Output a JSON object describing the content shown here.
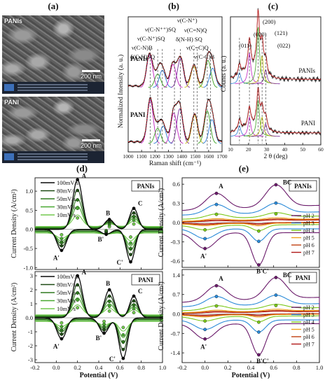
{
  "panel_labels": [
    "(a)",
    "(b)",
    "(c)",
    "(d)",
    "(e)"
  ],
  "sem": {
    "images": [
      {
        "label": "PANIs",
        "scale": "200 nm"
      },
      {
        "label": "PANI",
        "scale": "200 nm"
      }
    ]
  },
  "colors": {
    "data_black": "#1a1a1a",
    "fit_red": "#d42020",
    "band_blue": "#2a7ad4",
    "band_magenta": "#c020c0",
    "band_green": "#3aa020",
    "band_yellow": "#c8c010",
    "band_purple": "#7a2a9a",
    "pH_colors": [
      "#6a1a6a",
      "#2a8ad8",
      "#7ac818",
      "#f0a020",
      "#c04010",
      "#b01818"
    ],
    "cv_greens": [
      "#0a0a0a",
      "#1e4a14",
      "#2e7a1e",
      "#48a830",
      "#72c84e"
    ]
  },
  "chart_data": [
    {
      "id": "b",
      "type": "line",
      "title": "",
      "xlabel": "Raman shift (cm⁻¹)",
      "ylabel": "Normalized Intensity (a. u.)",
      "xlim": [
        1000,
        1700
      ],
      "xticks": [
        1000,
        1100,
        1200,
        1300,
        1400,
        1500,
        1600,
        1700
      ],
      "series": [
        {
          "name": "PANIs",
          "peaks": [
            [
              1160,
              0.85
            ],
            [
              1220,
              0.35
            ],
            [
              1255,
              0.45
            ],
            [
              1335,
              0.6
            ],
            [
              1390,
              0.75
            ],
            [
              1490,
              0.55
            ],
            [
              1595,
              0.7
            ],
            [
              1630,
              0.5
            ]
          ]
        },
        {
          "name": "PANI",
          "peaks": [
            [
              1165,
              1.0
            ],
            [
              1220,
              0.35
            ],
            [
              1260,
              0.4
            ],
            [
              1340,
              0.7
            ],
            [
              1385,
              0.8
            ],
            [
              1495,
              0.65
            ],
            [
              1590,
              0.75
            ],
            [
              1625,
              0.55
            ]
          ]
        }
      ],
      "band_labels": [
        {
          "text": "δ(C-H)SQ",
          "x": 1165
        },
        {
          "text": "ν(C-N)B",
          "x": 1220
        },
        {
          "text": "ν(C-N⁺)SQ",
          "x": 1255
        },
        {
          "text": "ν(C-N⁺⁺)SQ",
          "x": 1345
        },
        {
          "text": "ν(C-N⁺)",
          "x": 1390
        },
        {
          "text": "ν(C=N)Q",
          "x": 1490
        },
        {
          "text": "δ(N-H) SQ",
          "x": 1515
        },
        {
          "text": "ν(C=C)Q",
          "x": 1590
        },
        {
          "text": "ν(C-C)B",
          "x": 1615
        }
      ]
    },
    {
      "id": "c",
      "type": "line",
      "xlabel": "2 θ (deg)",
      "ylabel": "Counts (a. u.)",
      "xlim": [
        10,
        60
      ],
      "xticks": [
        10,
        20,
        30,
        40,
        50,
        60
      ],
      "series": [
        {
          "name": "PANIs",
          "peaks": [
            [
              15,
              0.2
            ],
            [
              20.5,
              0.55
            ],
            [
              25.3,
              1.0
            ],
            [
              27.5,
              0.5
            ],
            [
              29.5,
              0.25
            ]
          ]
        },
        {
          "name": "PANI",
          "peaks": [
            [
              15,
              0.25
            ],
            [
              20.5,
              0.45
            ],
            [
              25.3,
              0.85
            ],
            [
              27.5,
              0.45
            ],
            [
              29.5,
              0.3
            ]
          ]
        }
      ],
      "peak_labels": [
        {
          "text": "(011)",
          "x": 15
        },
        {
          "text": "(020)",
          "x": 20.5
        },
        {
          "text": "(200)",
          "x": 25.3
        },
        {
          "text": "(121)",
          "x": 27.5
        },
        {
          "text": "(022)",
          "x": 29.5
        }
      ]
    },
    {
      "id": "d-top",
      "type": "line",
      "xlabel": "Potential (V)",
      "ylabel": "Current Density (A/cm²)",
      "xlim": [
        -0.2,
        1.0
      ],
      "ylim": [
        -1.05,
        1.35
      ],
      "yticks": [
        -1.0,
        -0.5,
        0.0,
        0.5,
        1.0
      ],
      "legend": "PANIs",
      "scan_rates": [
        "100mV/s",
        "80mV/s",
        "50mV/s",
        "30mV/s",
        "10mV/s"
      ],
      "anodic_A": [
        0.2,
        [
          1.3,
          1.02,
          0.77,
          0.55,
          0.3
        ]
      ],
      "anodic_B": [
        0.5,
        [
          0.26,
          0.21,
          0.16,
          0.12,
          0.07
        ]
      ],
      "anodic_C": [
        0.73,
        [
          0.55,
          0.43,
          0.33,
          0.24,
          0.14
        ]
      ],
      "cathodic_A": [
        0.05,
        [
          -0.55,
          -0.43,
          -0.33,
          -0.24,
          -0.14
        ]
      ],
      "cathodic_B": [
        0.47,
        [
          -0.13,
          -0.1,
          -0.07,
          -0.05,
          -0.03
        ]
      ],
      "cathodic_C": [
        0.7,
        [
          -0.85,
          -0.66,
          -0.5,
          -0.36,
          -0.2
        ]
      ],
      "peak_labels": [
        "A",
        "B",
        "C",
        "A'",
        "B'",
        "C'"
      ]
    },
    {
      "id": "d-bottom",
      "type": "line",
      "xlabel": "Potential (V)",
      "ylabel": "Current Density (A/cm²)",
      "xlim": [
        -0.2,
        1.0
      ],
      "ylim": [
        -3.2,
        3.3
      ],
      "yticks": [
        -3,
        -2,
        -1,
        0,
        1,
        2,
        3
      ],
      "legend": "PANI",
      "scan_rates": [
        "100mV/s",
        "80mV/s",
        "50mV/s",
        "30mV/s",
        "10mV/s"
      ],
      "anodic_A": [
        0.2,
        [
          3.0,
          2.35,
          1.77,
          1.27,
          0.72
        ]
      ],
      "anodic_B": [
        0.5,
        [
          2.0,
          1.55,
          1.17,
          0.84,
          0.48
        ]
      ],
      "anodic_C": [
        0.73,
        [
          1.55,
          1.21,
          0.91,
          0.65,
          0.37
        ]
      ],
      "cathodic_A": [
        0.05,
        [
          -1.5,
          -1.17,
          -0.88,
          -0.63,
          -0.36
        ]
      ],
      "cathodic_B": [
        0.45,
        [
          -1.1,
          -0.86,
          -0.65,
          -0.46,
          -0.26
        ]
      ],
      "cathodic_C": [
        0.63,
        [
          -2.9,
          -2.26,
          -1.71,
          -1.22,
          -0.69
        ]
      ],
      "peak_labels": [
        "A",
        "B",
        "C",
        "A'",
        "B'",
        "C'"
      ]
    },
    {
      "id": "e-top",
      "type": "line",
      "xlabel": "Potential (V)",
      "ylabel": "Current Density (A/cm²)",
      "xlim": [
        -0.2,
        1.0
      ],
      "ylim": [
        -0.7,
        0.7
      ],
      "yticks": [
        -0.6,
        -0.3,
        0.0,
        0.3,
        0.6
      ],
      "legend": "PANIs",
      "series_names": [
        "pH 2",
        "pH 3",
        "pH 4",
        "pH 5",
        "pH 6",
        "pH 7"
      ],
      "peak_labels": [
        "A",
        "BC",
        "A'",
        "B'C'"
      ]
    },
    {
      "id": "e-bottom",
      "type": "line",
      "xlabel": "Potential (V)",
      "ylabel": "Current Density (A/cm²)",
      "xlim": [
        -0.2,
        1.0
      ],
      "ylim": [
        -1.75,
        1.6
      ],
      "yticks": [
        -1.4,
        -0.7,
        0.0,
        0.7,
        1.4
      ],
      "legend": "PANI",
      "series_names": [
        "pH 2",
        "pH 3",
        "pH 4",
        "pH 5",
        "pH 6",
        "pH 7"
      ],
      "peak_labels": [
        "A",
        "BC",
        "A'",
        "B'C'"
      ]
    }
  ]
}
